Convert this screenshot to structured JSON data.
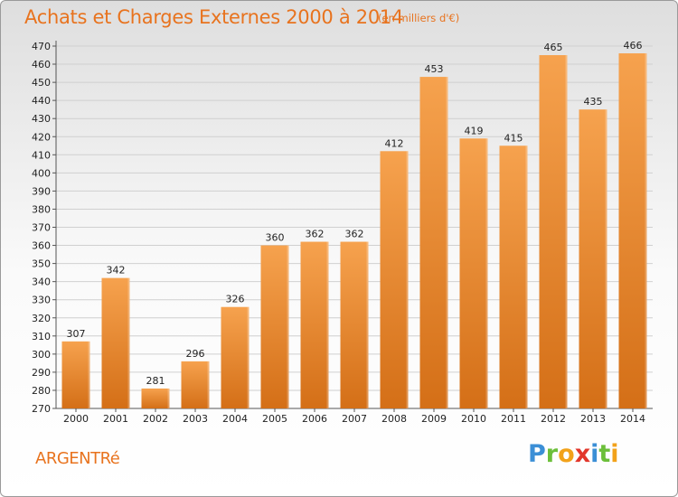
{
  "header": {
    "title": "Achats et Charges Externes 2000 à 2014",
    "subtitle": "(en milliers d'€)"
  },
  "footer": {
    "place": "ARGENTRé",
    "logo_letters": [
      "P",
      "r",
      "o",
      "x",
      "i",
      "t",
      "i"
    ],
    "logo_colors": [
      "#3b8fd6",
      "#6cbf3a",
      "#f2a21a",
      "#e2362b",
      "#3b8fd6",
      "#6cbf3a",
      "#f2a21a"
    ]
  },
  "colors": {
    "bar_light": "#f6a24e",
    "bar_dark": "#d46f17",
    "title": "#e8731e"
  },
  "chart_data": {
    "type": "bar",
    "categories": [
      "2000",
      "2001",
      "2002",
      "2003",
      "2004",
      "2005",
      "2006",
      "2007",
      "2008",
      "2009",
      "2010",
      "2011",
      "2012",
      "2013",
      "2014"
    ],
    "values": [
      307,
      342,
      281,
      296,
      326,
      360,
      362,
      362,
      412,
      453,
      419,
      415,
      465,
      435,
      466
    ],
    "ylim": [
      270,
      470
    ],
    "yticks": [
      270,
      280,
      290,
      300,
      310,
      320,
      330,
      340,
      350,
      360,
      370,
      380,
      390,
      400,
      410,
      420,
      430,
      440,
      450,
      460,
      470
    ],
    "grid": true
  }
}
